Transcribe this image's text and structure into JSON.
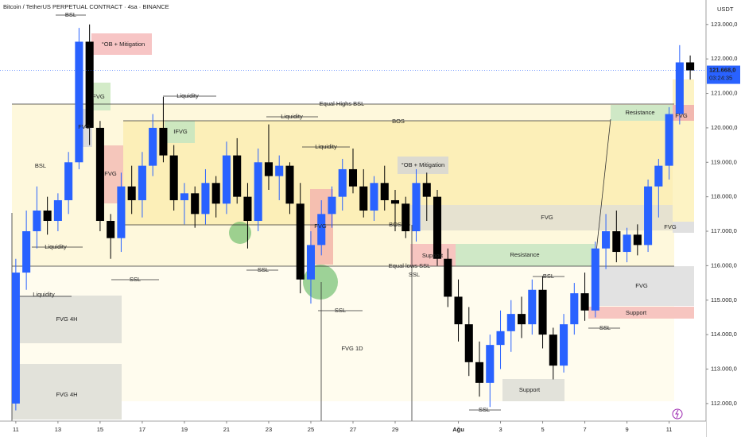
{
  "chart_data": {
    "type": "candlestick",
    "title": "Bitcoin / TetherUS PERPETUAL CONTRACT · 4sa · BINANCE",
    "y_unit": "USDT",
    "up_color": "#2962ff",
    "down_color": "#000000",
    "x": [
      0,
      0.5,
      1,
      1.5,
      2,
      2.5,
      3,
      3.5,
      4,
      4.5,
      5,
      5.5,
      6,
      6.5,
      7,
      7.5,
      8,
      8.5,
      9,
      9.5,
      10,
      10.5,
      11,
      11.5,
      12,
      12.5,
      13,
      13.5,
      14,
      14.5,
      15,
      15.5,
      16,
      16.5,
      17,
      17.5,
      18,
      18.5,
      19,
      19.5,
      20,
      20.5,
      21,
      21.5,
      22,
      22.5,
      23,
      23.5,
      24,
      24.5,
      25,
      25.5,
      26,
      26.5,
      27,
      27.5,
      28,
      28.5,
      29,
      29.5,
      30,
      30.5,
      31,
      31.5,
      32
    ],
    "open": [
      112000,
      115800,
      117000,
      117600,
      117300,
      117900,
      119000,
      122500,
      120000,
      117300,
      116800,
      118300,
      117900,
      118900,
      120000,
      119200,
      117900,
      118100,
      117500,
      118400,
      117800,
      119200,
      118000,
      117300,
      119000,
      118600,
      118900,
      117800,
      115600,
      116600,
      117500,
      118000,
      118800,
      118300,
      117600,
      118400,
      117900,
      117800,
      117000,
      118400,
      118000,
      116200,
      115100,
      114300,
      113200,
      112600,
      113700,
      114100,
      114600,
      114300,
      115300,
      114000,
      113100,
      114300,
      115200,
      114700,
      116500,
      117000,
      116400,
      116900,
      116600,
      118300,
      118900,
      120400,
      121900
    ],
    "high": [
      116200,
      117600,
      118300,
      118000,
      118100,
      119300,
      122900,
      123000,
      120200,
      117500,
      118700,
      118900,
      119300,
      120400,
      120900,
      119500,
      118400,
      118300,
      118800,
      118600,
      119600,
      119700,
      118400,
      119400,
      120100,
      119200,
      119000,
      118400,
      117000,
      117900,
      118300,
      119100,
      119400,
      118800,
      118600,
      118900,
      118200,
      118000,
      118800,
      118700,
      118200,
      116500,
      115600,
      114800,
      113800,
      114000,
      114700,
      115000,
      115100,
      115600,
      115700,
      114200,
      114600,
      115500,
      115800,
      116700,
      117500,
      117600,
      117100,
      117200,
      118500,
      119100,
      120600,
      122400,
      122100
    ],
    "low": [
      111800,
      115300,
      116500,
      116900,
      117000,
      117500,
      118800,
      119500,
      117000,
      116200,
      116400,
      117500,
      117400,
      118600,
      119000,
      117600,
      117200,
      117100,
      117200,
      117400,
      117500,
      117800,
      116500,
      117000,
      118200,
      117900,
      117500,
      115200,
      114900,
      116300,
      117100,
      117600,
      118100,
      117400,
      117300,
      117600,
      117000,
      116800,
      116700,
      117300,
      116000,
      114800,
      113800,
      112800,
      112200,
      111900,
      113000,
      113500,
      113900,
      114000,
      113600,
      112700,
      112900,
      114000,
      114400,
      114500,
      115900,
      116100,
      116100,
      116300,
      116400,
      117400,
      118500,
      120100,
      121400
    ],
    "close": [
      115800,
      117000,
      117600,
      117300,
      117900,
      119000,
      122500,
      120000,
      117300,
      116800,
      118300,
      117900,
      118900,
      120000,
      119200,
      117900,
      118100,
      117500,
      118400,
      117800,
      119200,
      118000,
      117300,
      119000,
      118600,
      118900,
      117800,
      115600,
      116600,
      117500,
      118000,
      118800,
      118300,
      117600,
      118400,
      117900,
      117800,
      117000,
      118400,
      118000,
      116200,
      115100,
      114300,
      113200,
      112600,
      113700,
      114100,
      114600,
      114300,
      115300,
      114000,
      113100,
      114300,
      115200,
      114700,
      116500,
      117000,
      116400,
      116900,
      116600,
      118300,
      118900,
      120400,
      121900,
      121668
    ],
    "xlim": [
      -0.75,
      32.6
    ],
    "xticks": [
      {
        "value": 0,
        "label": "11"
      },
      {
        "value": 2,
        "label": "13"
      },
      {
        "value": 4,
        "label": "15"
      },
      {
        "value": 6,
        "label": "17"
      },
      {
        "value": 8,
        "label": "19"
      },
      {
        "value": 10,
        "label": "21"
      },
      {
        "value": 12,
        "label": "23"
      },
      {
        "value": 14,
        "label": "25"
      },
      {
        "value": 16,
        "label": "27"
      },
      {
        "value": 18,
        "label": "29"
      },
      {
        "value": 21,
        "label": "Ağu"
      },
      {
        "value": 23,
        "label": "3"
      },
      {
        "value": 25,
        "label": "5"
      },
      {
        "value": 27,
        "label": "7"
      },
      {
        "value": 29,
        "label": "9"
      },
      {
        "value": 31,
        "label": "11"
      }
    ],
    "ylim": [
      111490,
      123710
    ],
    "yticks": [
      {
        "value": 112000,
        "label": "112.000,0"
      },
      {
        "value": 113000,
        "label": "113.000,0"
      },
      {
        "value": 114000,
        "label": "114.000,0"
      },
      {
        "value": 115000,
        "label": "115.000,0"
      },
      {
        "value": 116000,
        "label": "116.000,0"
      },
      {
        "value": 117000,
        "label": "117.000,0"
      },
      {
        "value": 118000,
        "label": "118.000,0"
      },
      {
        "value": 119000,
        "label": "119.000,0"
      },
      {
        "value": 120000,
        "label": "120.000,0"
      },
      {
        "value": 121000,
        "label": "121.000,0"
      },
      {
        "value": 122000,
        "label": "122.000,0"
      },
      {
        "value": 123000,
        "label": "123.000,0"
      }
    ],
    "last_price": {
      "value": 121668,
      "label": "121.668,0"
    },
    "countdown": "03:24:35",
    "annotations": [
      "BSL",
      "°OB + Mitigation",
      "FVG",
      "FVG",
      "FVG",
      "BSL",
      "Liquidity",
      "Liquidity",
      "FVG 4H",
      "FVG 4H",
      "Liquidity",
      "IFVG",
      "Liquidity",
      "Equal Highs BSL",
      "Liquidity",
      "BOS",
      "°OB + Mitigation",
      "FVG",
      "BOS",
      "SSL",
      "SSL",
      "Equal lows SSL",
      "SSL",
      "SSL",
      "FVG 1D",
      "Support",
      "Resistance",
      "FVG",
      "Resistance",
      "FVG",
      "FVG",
      "FVG",
      "Support",
      "BSL",
      "SSL",
      "Support",
      "SSL"
    ]
  }
}
